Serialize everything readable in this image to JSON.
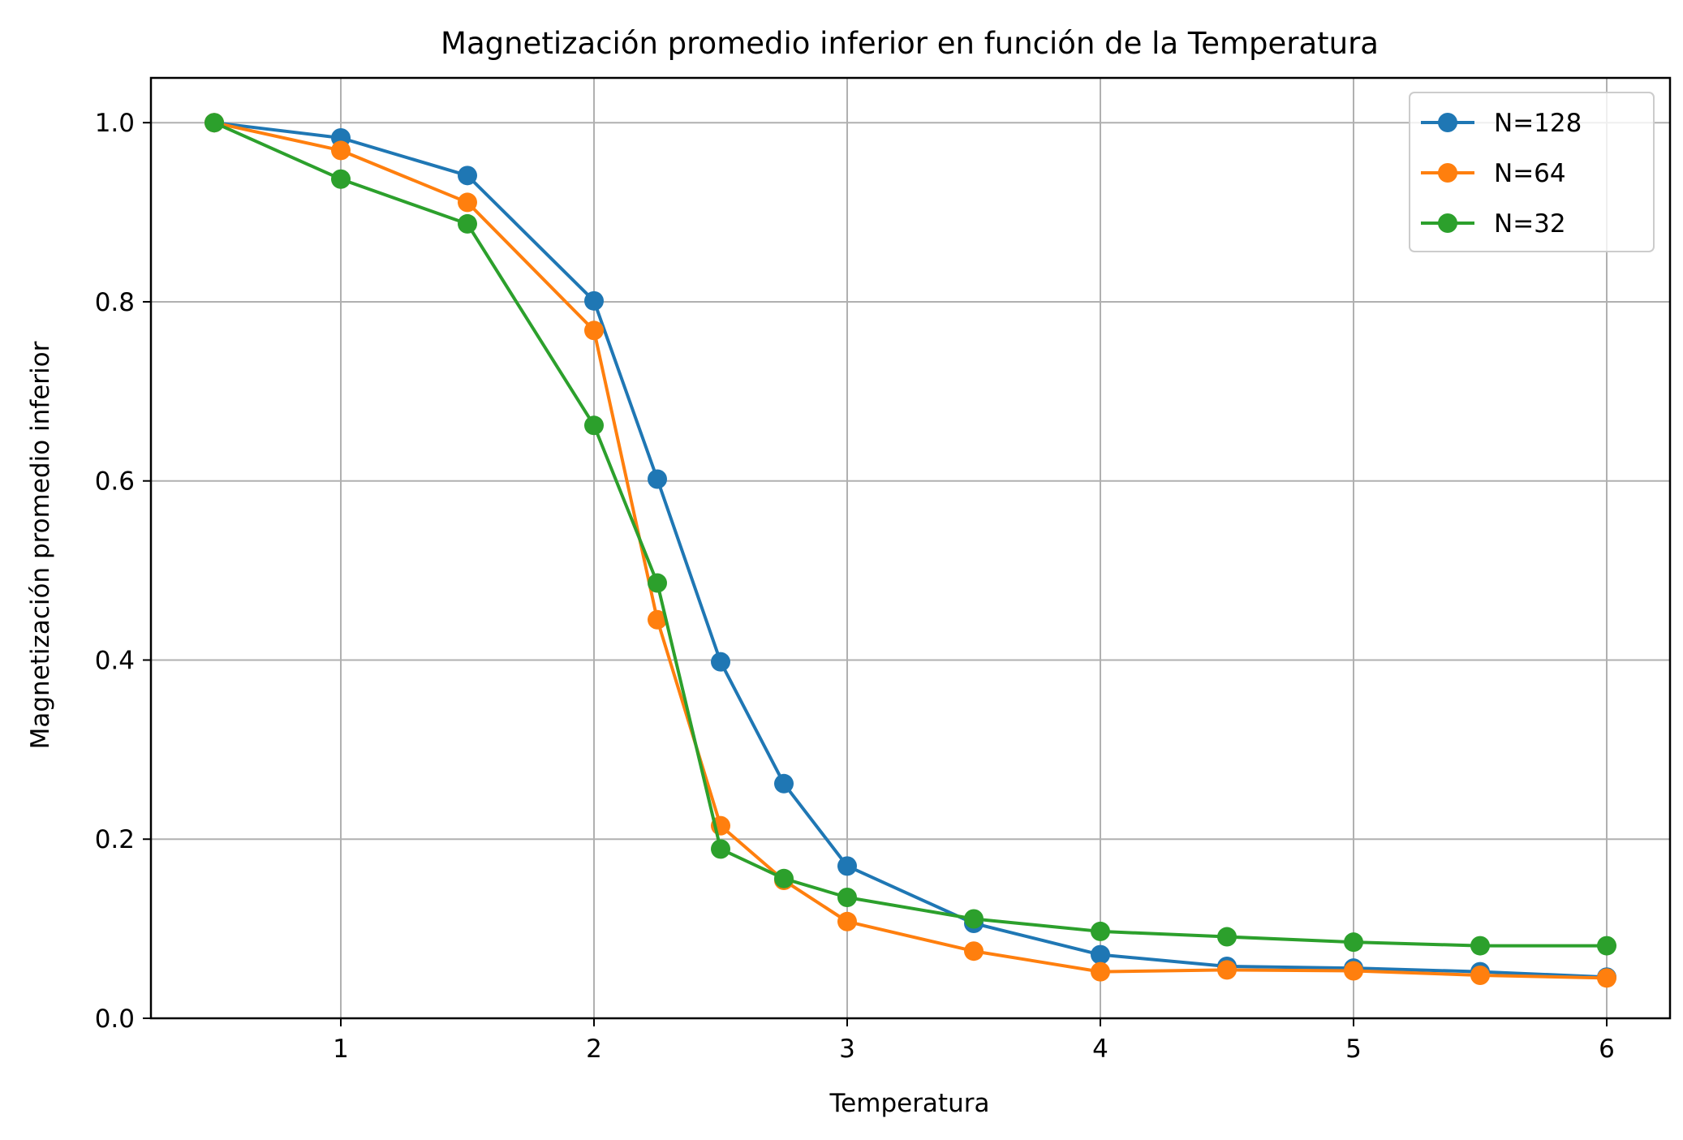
{
  "chart_data": {
    "type": "line",
    "title": "Magnetización promedio inferior en función de la Temperatura",
    "xlabel": "Temperatura",
    "ylabel": "Magnetización promedio inferior",
    "xlim": [
      0.25,
      6.25
    ],
    "ylim": [
      0.0,
      1.05
    ],
    "xticks": [
      1,
      2,
      3,
      4,
      5,
      6
    ],
    "xtick_labels": [
      "1",
      "2",
      "3",
      "4",
      "5",
      "6"
    ],
    "yticks": [
      0.0,
      0.2,
      0.4,
      0.6,
      0.8,
      1.0
    ],
    "ytick_labels": [
      "0.0",
      "0.2",
      "0.4",
      "0.6",
      "0.8",
      "1.0"
    ],
    "grid": true,
    "legend_position": "top-right",
    "x": [
      0.5,
      1.0,
      1.5,
      2.0,
      2.25,
      2.5,
      2.75,
      3.0,
      3.5,
      4.0,
      4.5,
      5.0,
      5.5,
      6.0
    ],
    "series": [
      {
        "name": "N=128",
        "color": "#1f77b4",
        "values": [
          1.0,
          0.983,
          0.941,
          0.801,
          0.602,
          0.398,
          0.262,
          0.17,
          0.106,
          0.071,
          0.058,
          0.056,
          0.052,
          0.046
        ]
      },
      {
        "name": "N=64",
        "color": "#ff7f0e",
        "values": [
          1.0,
          0.969,
          0.911,
          0.768,
          0.445,
          0.215,
          0.154,
          0.108,
          0.075,
          0.052,
          0.054,
          0.053,
          0.048,
          0.045
        ]
      },
      {
        "name": "N=32",
        "color": "#2ca02c",
        "values": [
          1.0,
          0.937,
          0.887,
          0.662,
          0.486,
          0.189,
          0.156,
          0.135,
          0.111,
          0.097,
          0.091,
          0.085,
          0.081,
          0.081
        ]
      }
    ]
  }
}
